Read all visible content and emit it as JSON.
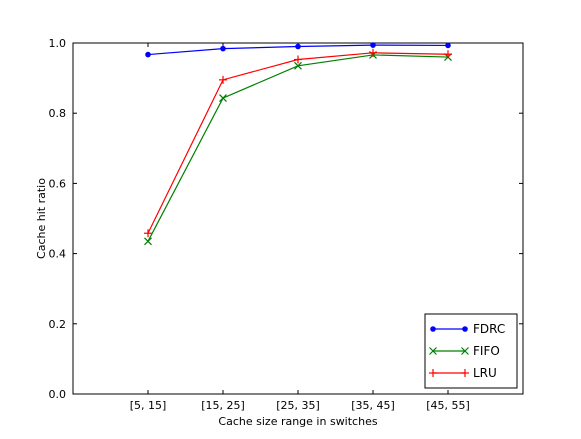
{
  "chart_data": {
    "type": "line",
    "categories": [
      "[5, 15]",
      "[15, 25]",
      "[25, 35]",
      "[35, 45]",
      "[45, 55]"
    ],
    "series": [
      {
        "name": "FDRC",
        "color": "#0000ff",
        "marker": "dot",
        "values": [
          0.967,
          0.984,
          0.99,
          0.994,
          0.993
        ]
      },
      {
        "name": "FIFO",
        "color": "#008000",
        "marker": "x",
        "values": [
          0.435,
          0.843,
          0.935,
          0.966,
          0.96
        ]
      },
      {
        "name": "LRU",
        "color": "#ff0000",
        "marker": "plus",
        "values": [
          0.458,
          0.895,
          0.953,
          0.972,
          0.968
        ]
      }
    ],
    "xlabel": "Cache size range in switches",
    "ylabel": "Cache hit ratio",
    "ylim": [
      0.0,
      1.0
    ],
    "yticks": [
      "0.0",
      "0.2",
      "0.4",
      "0.6",
      "0.8",
      "1.0"
    ],
    "grid": false,
    "legend_position": "bottom-right"
  }
}
